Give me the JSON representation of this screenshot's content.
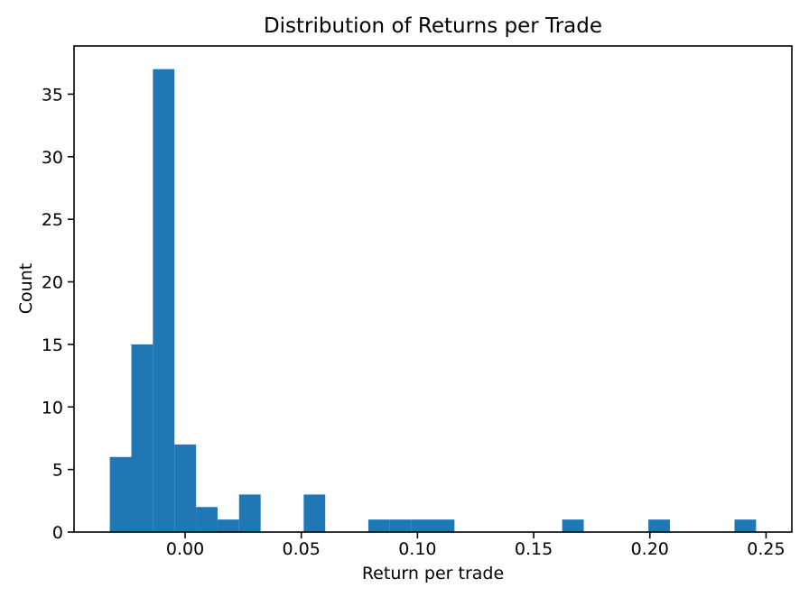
{
  "chart_data": {
    "type": "bar",
    "subtype": "histogram",
    "title": "Distribution of Returns per Trade",
    "xlabel": "Return per trade",
    "ylabel": "Count",
    "bar_color": "#1f77b4",
    "axis_color": "#000000",
    "background_color": "#ffffff",
    "grid": false,
    "legend": null,
    "bin_start": -0.0324,
    "bin_width": 0.00927,
    "bin_counts": [
      6,
      15,
      37,
      7,
      2,
      1,
      3,
      0,
      0,
      3,
      0,
      0,
      1,
      1,
      1,
      1,
      0,
      0,
      0,
      0,
      0,
      1,
      0,
      0,
      0,
      1,
      0,
      0,
      0,
      1
    ],
    "xlim": [
      -0.0478,
      0.2611
    ],
    "ylim": [
      0,
      38.85
    ],
    "xticks": [
      {
        "value": 0.0,
        "label": "0.00"
      },
      {
        "value": 0.05,
        "label": "0.05"
      },
      {
        "value": 0.1,
        "label": "0.10"
      },
      {
        "value": 0.15,
        "label": "0.15"
      },
      {
        "value": 0.2,
        "label": "0.20"
      },
      {
        "value": 0.25,
        "label": "0.25"
      }
    ],
    "yticks": [
      {
        "value": 0,
        "label": "0"
      },
      {
        "value": 5,
        "label": "5"
      },
      {
        "value": 10,
        "label": "10"
      },
      {
        "value": 15,
        "label": "15"
      },
      {
        "value": 20,
        "label": "20"
      },
      {
        "value": 25,
        "label": "25"
      },
      {
        "value": 30,
        "label": "30"
      },
      {
        "value": 35,
        "label": "35"
      }
    ]
  }
}
